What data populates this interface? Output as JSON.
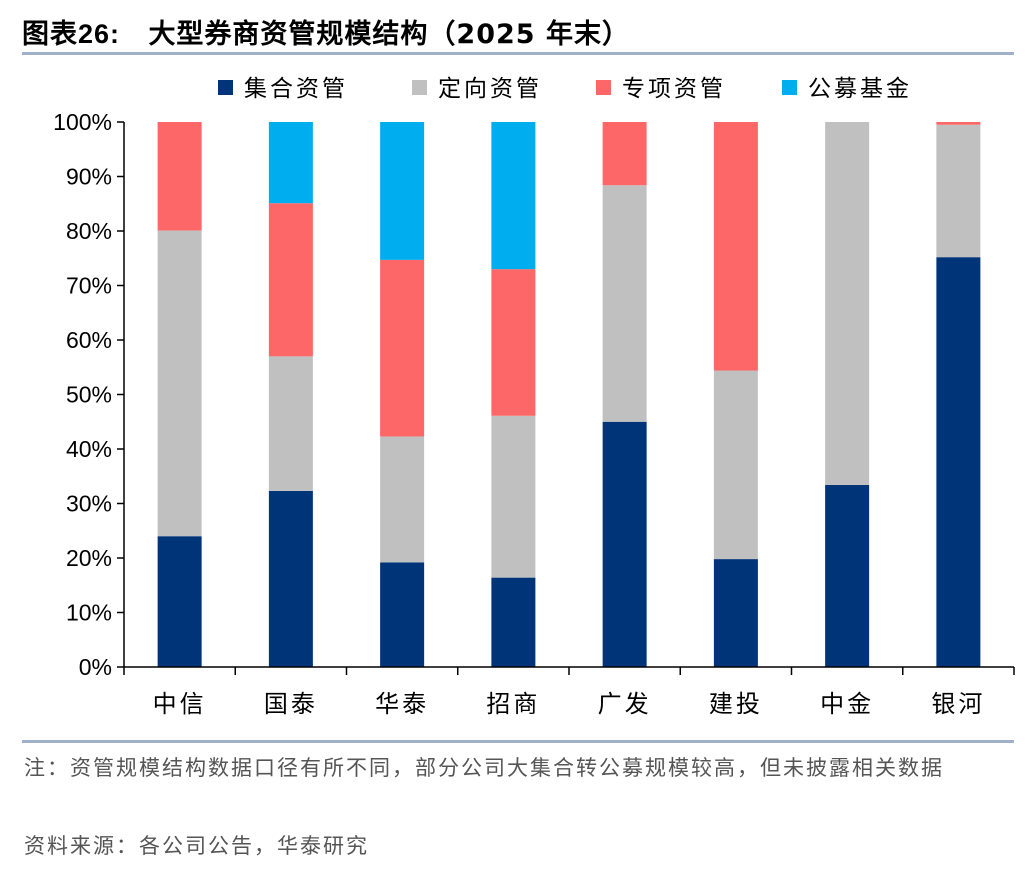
{
  "title": {
    "prefix": "图表",
    "number": "26:",
    "text": "大型券商资管规模结构（2025 年末）"
  },
  "colors": {
    "集合资管": "#003478",
    "定向资管": "#c0c0c0",
    "专项资管": "#fe6767",
    "公募基金": "#00aeef",
    "axis": "#000000",
    "rule": "#9fb0c8"
  },
  "chart_data": {
    "type": "bar",
    "stacked": true,
    "categories": [
      "中信",
      "国泰",
      "华泰",
      "招商",
      "广发",
      "建投",
      "中金",
      "银河"
    ],
    "series": [
      {
        "name": "集合资管",
        "values": [
          24.0,
          32.3,
          19.2,
          16.4,
          45.0,
          19.8,
          33.4,
          75.2
        ]
      },
      {
        "name": "定向资管",
        "values": [
          56.1,
          24.7,
          23.1,
          29.7,
          43.4,
          34.6,
          66.6,
          24.3
        ]
      },
      {
        "name": "专项资管",
        "values": [
          19.9,
          28.1,
          32.4,
          26.9,
          11.6,
          45.6,
          0.0,
          0.5
        ]
      },
      {
        "name": "公募基金",
        "values": [
          0.0,
          14.9,
          25.3,
          27.0,
          0.0,
          0.0,
          0.0,
          0.0
        ]
      }
    ],
    "ylim": [
      0,
      100
    ],
    "yticks": [
      0,
      10,
      20,
      30,
      40,
      50,
      60,
      70,
      80,
      90,
      100
    ],
    "ytick_suffix": "%",
    "legend": "top",
    "grid": false
  },
  "notes": {
    "note": "注：资管规模结构数据口径有所不同，部分公司大集合转公募规模较高，但未披露相关数据",
    "source": "资料来源：各公司公告，华泰研究"
  }
}
